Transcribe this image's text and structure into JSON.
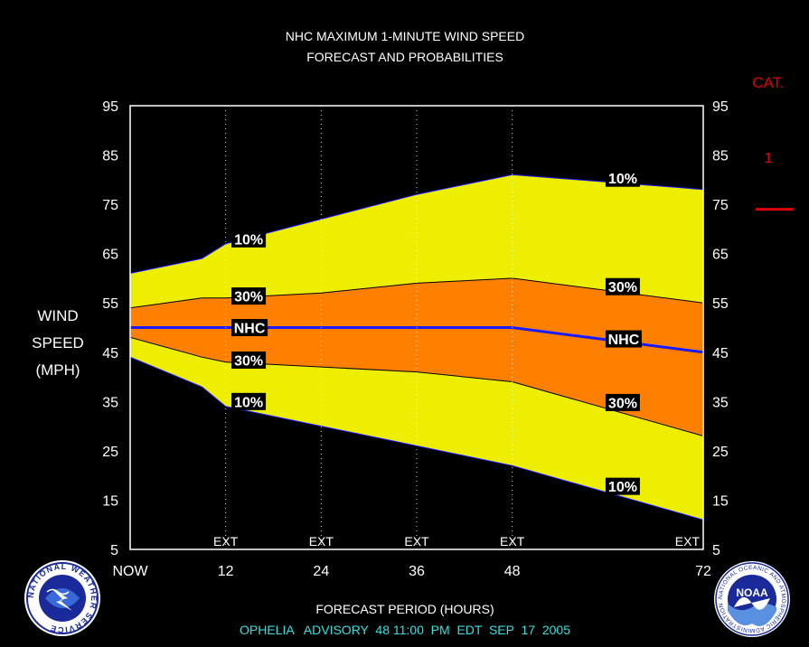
{
  "title_line1": "NHC MAXIMUM 1-MINUTE WIND SPEED",
  "title_line2": "FORECAST AND PROBABILITIES",
  "ylabel_lines": [
    "WIND",
    "SPEED",
    "(MPH)"
  ],
  "xlabel": "FORECAST PERIOD (HOURS)",
  "advisory": "OPHELIA   ADVISORY  48 11:00  PM  EDT  SEP  17  2005",
  "category": {
    "label": "CAT.",
    "value": "1",
    "threshold_mph": 74,
    "color": "#e00000"
  },
  "colors": {
    "band10": "#eeee00",
    "band30": "#ff7f00",
    "nhc_line": "#1a1aff",
    "background": "#000000",
    "frame": "#ffffff",
    "advisory_text": "#33e0e0",
    "cat_text": "#e00000"
  },
  "chart_data": {
    "type": "area",
    "x_ticks": [
      {
        "x": 0,
        "label": "NOW"
      },
      {
        "x": 12,
        "label": "12"
      },
      {
        "x": 24,
        "label": "24"
      },
      {
        "x": 36,
        "label": "36"
      },
      {
        "x": 48,
        "label": "48"
      },
      {
        "x": 72,
        "label": "72"
      }
    ],
    "ext_marks": [
      {
        "x": 12,
        "label": "EXT"
      },
      {
        "x": 24,
        "label": "EXT"
      },
      {
        "x": 36,
        "label": "EXT"
      },
      {
        "x": 48,
        "label": "EXT"
      },
      {
        "x": 72,
        "label": "EXT"
      }
    ],
    "y_ticks": [
      5,
      15,
      25,
      35,
      45,
      55,
      65,
      75,
      85,
      95
    ],
    "xlim": [
      0,
      72
    ],
    "ylim": [
      5,
      95
    ],
    "series": [
      {
        "name": "10% upper",
        "x": [
          0,
          9,
          12,
          24,
          36,
          48,
          72
        ],
        "values": [
          61,
          64,
          67,
          72,
          77,
          81,
          78
        ]
      },
      {
        "name": "30% upper",
        "x": [
          0,
          9,
          12,
          24,
          36,
          48,
          72
        ],
        "values": [
          54,
          56,
          56,
          57,
          59,
          60,
          55
        ]
      },
      {
        "name": "NHC",
        "x": [
          0,
          48,
          72
        ],
        "values": [
          50,
          50,
          45
        ]
      },
      {
        "name": "30% lower",
        "x": [
          0,
          9,
          12,
          24,
          36,
          48,
          72
        ],
        "values": [
          48,
          44,
          43,
          42,
          41,
          39,
          28
        ]
      },
      {
        "name": "10% lower",
        "x": [
          0,
          9,
          12,
          24,
          36,
          48,
          72
        ],
        "values": [
          44,
          38,
          34,
          30,
          26,
          22,
          11
        ]
      }
    ],
    "labels": [
      {
        "text": "10%",
        "x": 15,
        "y": 68
      },
      {
        "text": "30%",
        "x": 15,
        "y": 56.4
      },
      {
        "text": "NHC",
        "x": 15,
        "y": 50
      },
      {
        "text": "30%",
        "x": 15,
        "y": 43.4
      },
      {
        "text": "10%",
        "x": 15,
        "y": 35
      },
      {
        "text": "10%",
        "x": 62,
        "y": 80.3
      },
      {
        "text": "30%",
        "x": 62,
        "y": 58.3
      },
      {
        "text": "NHC",
        "x": 62,
        "y": 47.7
      },
      {
        "text": "30%",
        "x": 62,
        "y": 34.8
      },
      {
        "text": "10%",
        "x": 62,
        "y": 17.8
      }
    ]
  },
  "logos": {
    "nws": {
      "text": "NATIONAL WEATHER SERVICE"
    },
    "noaa": {
      "text": "NOAA",
      "ring_text": "NATIONAL OCEANIC AND ATMOSPHERIC ADMINISTRATION · U.S. DEPARTMENT OF COMMERCE"
    }
  }
}
